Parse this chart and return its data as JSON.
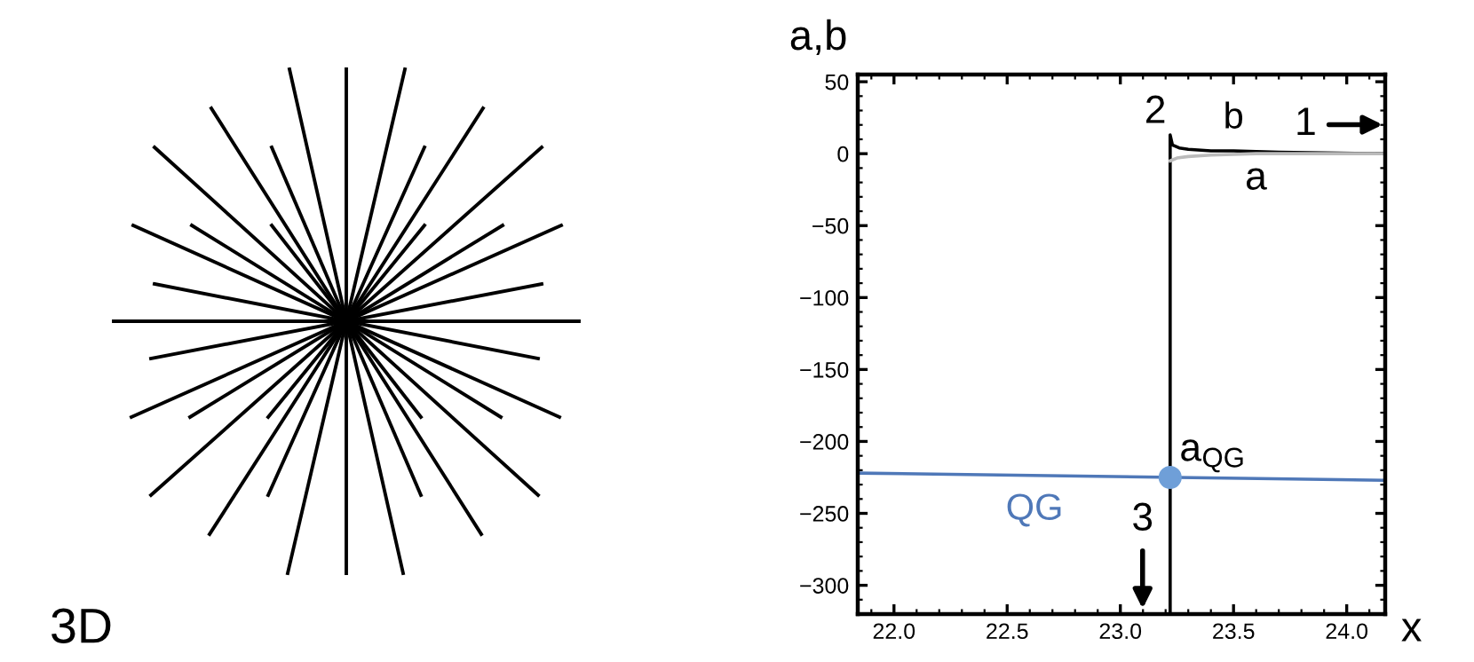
{
  "chart_data": {
    "type": "line",
    "xlabel": "x",
    "ylabel": "a,b",
    "xlim": [
      21.84,
      24.17
    ],
    "ylim": [
      -320,
      55
    ],
    "xticks": [
      {
        "value": 22.0,
        "label": "22.0"
      },
      {
        "value": 22.5,
        "label": "22.5"
      },
      {
        "value": 23.0,
        "label": "23.0"
      },
      {
        "value": 23.5,
        "label": "23.5"
      },
      {
        "value": 24.0,
        "label": "24.0"
      }
    ],
    "yticks": [
      {
        "value": -300,
        "label": "−300"
      },
      {
        "value": -250,
        "label": "−250"
      },
      {
        "value": -200,
        "label": "−200"
      },
      {
        "value": -150,
        "label": "−150"
      },
      {
        "value": -100,
        "label": "−100"
      },
      {
        "value": -50,
        "label": "−50"
      },
      0,
      50
    ],
    "grid": false,
    "marker": "none",
    "line_style": "solid",
    "series": [
      {
        "name": "b",
        "color": "#000000",
        "x": [
          23.22,
          23.22,
          23.23,
          23.26,
          23.3,
          23.4,
          23.5,
          23.7,
          24.17
        ],
        "values": [
          -320,
          13,
          6,
          4,
          3,
          2,
          2,
          1,
          0
        ]
      },
      {
        "color": "#bbbbbb",
        "x": [
          23.22,
          23.25,
          23.3,
          23.4,
          23.6,
          24.17
        ],
        "values": [
          -5,
          -3,
          -2,
          -1,
          0,
          0
        ]
      },
      {
        "name": "QG",
        "color": "#4f78b8",
        "x": [
          21.84,
          24.17
        ],
        "values": [
          -222,
          -227
        ]
      },
      {
        "type": "scatter",
        "marker": "circle",
        "color": "#6f9fd8",
        "x": [
          23.22
        ],
        "values": [
          -225
        ]
      }
    ],
    "annotations": [
      "3D",
      "1",
      "2",
      "3",
      "a",
      "a$_{QG}$"
    ]
  }
}
